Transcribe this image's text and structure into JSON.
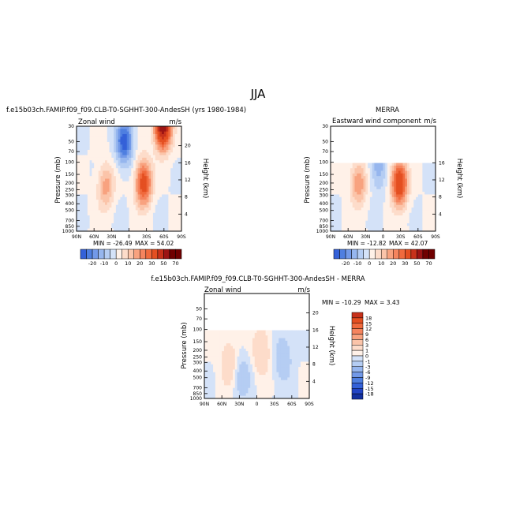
{
  "page": {
    "title": "JJA"
  },
  "colors": {
    "neg": [
      "#d4e2f8",
      "#b5cdf3",
      "#96b6ee",
      "#7299e8",
      "#4f7fe0",
      "#3461d8",
      "#2244c4",
      "#13309f",
      "#061f80",
      "#000b55"
    ],
    "pos": [
      "#fff1e8",
      "#fddcca",
      "#fbc4a9",
      "#f8a27f",
      "#f5845e",
      "#f06a3d",
      "#e44f21",
      "#c7311a",
      "#9c1414",
      "#700000"
    ],
    "zero": "#ffffff",
    "missing": "#ffffff"
  },
  "chart_data": [
    {
      "type": "heatmap",
      "id": "model",
      "title": "f.e15b03ch.FAMIP.f09_f09.CLB-T0-SGHHT-300-AndesSH (yrs 1980-1984)",
      "left_label": "Zonal wind",
      "right_label": "m/s",
      "xlabel": "",
      "ylabel": "Pressure (mb)",
      "y2label": "Height (km)",
      "x_ticks": [
        "90N",
        "60N",
        "30N",
        "0",
        "30S",
        "60S",
        "90S"
      ],
      "y_ticks": [
        "30",
        "50",
        "70",
        "100",
        "150",
        "200",
        "250",
        "300",
        "400",
        "500",
        "700",
        "850",
        "1000"
      ],
      "y2_ticks": [
        "20",
        "16",
        "12",
        "8",
        "4"
      ],
      "xlim": [
        90,
        -90
      ],
      "ylim": [
        1000,
        30
      ],
      "min_label": "MIN = -26.49",
      "max_label": "MAX = 54.02",
      "min": -26.49,
      "max": 54.02,
      "top_mb": 30,
      "levels": [
        -25,
        -20,
        -15,
        -10,
        -5,
        0,
        5,
        10,
        15,
        20,
        25,
        30,
        40,
        50,
        60,
        70
      ],
      "colorbar": {
        "orientation": "horizontal",
        "labels": [
          "-20",
          "-10",
          "0",
          "10",
          "20",
          "30",
          "50",
          "70"
        ]
      },
      "features": [
        {
          "name": "subtropical jet SH",
          "lat": -25,
          "p": 200,
          "amp": 36
        },
        {
          "name": "polar night jet SH",
          "lat": -58,
          "p": 30,
          "amp": 58
        },
        {
          "name": "jet NH",
          "lat": 40,
          "p": 220,
          "amp": 18
        },
        {
          "name": "tropical easterlies",
          "lat": 8,
          "p": 50,
          "amp": -28
        }
      ]
    },
    {
      "type": "heatmap",
      "id": "obs",
      "title": "MERRA",
      "left_label": "Eastward wind component",
      "right_label": "m/s",
      "xlabel": "",
      "ylabel": "Pressure (mb)",
      "y2label": "Height (km)",
      "x_ticks": [
        "90N",
        "60N",
        "30N",
        "0",
        "30S",
        "60S",
        "90S"
      ],
      "y_ticks": [
        "30",
        "50",
        "70",
        "100",
        "150",
        "200",
        "250",
        "300",
        "400",
        "500",
        "700",
        "850",
        "1000"
      ],
      "y2_ticks": [
        "16",
        "12",
        "8",
        "4"
      ],
      "xlim": [
        90,
        -90
      ],
      "ylim": [
        1000,
        30
      ],
      "min_label": "MIN = -12.82",
      "max_label": "MAX = 42.07",
      "min": -12.82,
      "max": 42.07,
      "top_mb": 100,
      "levels": [
        -25,
        -20,
        -15,
        -10,
        -5,
        0,
        5,
        10,
        15,
        20,
        25,
        30,
        40,
        50,
        60,
        70
      ],
      "colorbar": {
        "orientation": "horizontal",
        "labels": [
          "-20",
          "-10",
          "0",
          "10",
          "20",
          "30",
          "50",
          "70"
        ]
      },
      "features": [
        {
          "name": "subtropical jet SH",
          "lat": -28,
          "p": 200,
          "amp": 40
        },
        {
          "name": "jet NH",
          "lat": 42,
          "p": 200,
          "amp": 20
        },
        {
          "name": "tropical easterlies",
          "lat": 8,
          "p": 120,
          "amp": -13
        }
      ]
    },
    {
      "type": "heatmap",
      "id": "diff",
      "title": "f.e15b03ch.FAMIP.f09_f09.CLB-T0-SGHHT-300-AndesSH - MERRA",
      "left_label": "Zonal wind",
      "right_label": "m/s",
      "xlabel": "",
      "ylabel": "Pressure (mb)",
      "y2label": "Height (km)",
      "x_ticks": [
        "90N",
        "60N",
        "30N",
        "0",
        "30S",
        "60S",
        "90S"
      ],
      "y_ticks": [
        "50",
        "70",
        "100",
        "150",
        "200",
        "250",
        "300",
        "400",
        "500",
        "700",
        "850",
        "1000"
      ],
      "y2_ticks": [
        "20",
        "16",
        "12",
        "8",
        "4"
      ],
      "xlim": [
        90,
        -90
      ],
      "ylim": [
        1000,
        30
      ],
      "min_label": "MIN = -10.29",
      "max_label": "MAX = 3.43",
      "min": -10.29,
      "max": 3.43,
      "top_mb": 100,
      "levels": [
        -18,
        -15,
        -12,
        -9,
        -6,
        -3,
        -1,
        0,
        1,
        3,
        6,
        9,
        12,
        15,
        18
      ],
      "colorbar": {
        "orientation": "vertical",
        "labels": [
          "18",
          "15",
          "12",
          "9",
          "6",
          "3",
          "1",
          "0",
          "-1",
          "-3",
          "-6",
          "-9",
          "-12",
          "-15",
          "-18"
        ]
      },
      "features": [
        {
          "name": "positive band NH midlat",
          "lat": 48,
          "p": 300,
          "amp": 2.5
        },
        {
          "name": "positive SH subtropics",
          "lat": -8,
          "p": 200,
          "amp": 3.0
        },
        {
          "name": "negative SH midlat",
          "lat": -45,
          "p": 250,
          "amp": -2.5
        },
        {
          "name": "negative tropics",
          "lat": 25,
          "p": 500,
          "amp": -2.0
        }
      ]
    }
  ]
}
